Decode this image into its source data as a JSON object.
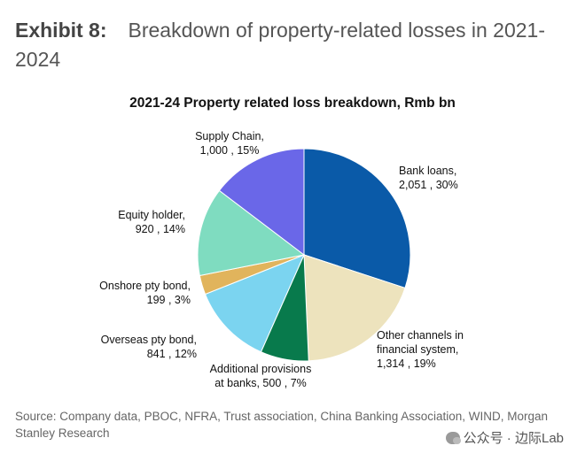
{
  "exhibit": {
    "number": "Exhibit 8:",
    "heading": "Breakdown of property-related losses in 2021-2024"
  },
  "chart_data": {
    "type": "pie",
    "title": "2021-24 Property related loss breakdown, Rmb bn",
    "slices": [
      {
        "name": "Bank loans,",
        "value": 2051,
        "percent": 30,
        "value_label": "2,051 , 30%",
        "color": "#0a5aa8"
      },
      {
        "name": "Other channels in financial system,",
        "value": 1314,
        "percent": 19,
        "value_label": "1,314 , 19%",
        "color": "#ede3bd"
      },
      {
        "name": "Additional provisions at banks,",
        "value": 500,
        "percent": 7,
        "value_label": "500 , 7%",
        "color": "#087a4c"
      },
      {
        "name": "Overseas pty bond,",
        "value": 841,
        "percent": 12,
        "value_label": "841 , 12%",
        "color": "#7bd4f0"
      },
      {
        "name": "Onshore pty bond,",
        "value": 199,
        "percent": 3,
        "value_label": "199 , 3%",
        "color": "#e1b45c"
      },
      {
        "name": "Equity holder,",
        "value": 920,
        "percent": 14,
        "value_label": "920 , 14%",
        "color": "#7fdcc0"
      },
      {
        "name": "Supply Chain,",
        "value": 1000,
        "percent": 15,
        "value_label": "1,000 , 15%",
        "color": "#6a67e8"
      }
    ]
  },
  "source": "Source: Company data, PBOC, NFRA, Trust association, China Banking Association, WIND, Morgan Stanley Research",
  "watermark": "公众号 · 边际Lab"
}
